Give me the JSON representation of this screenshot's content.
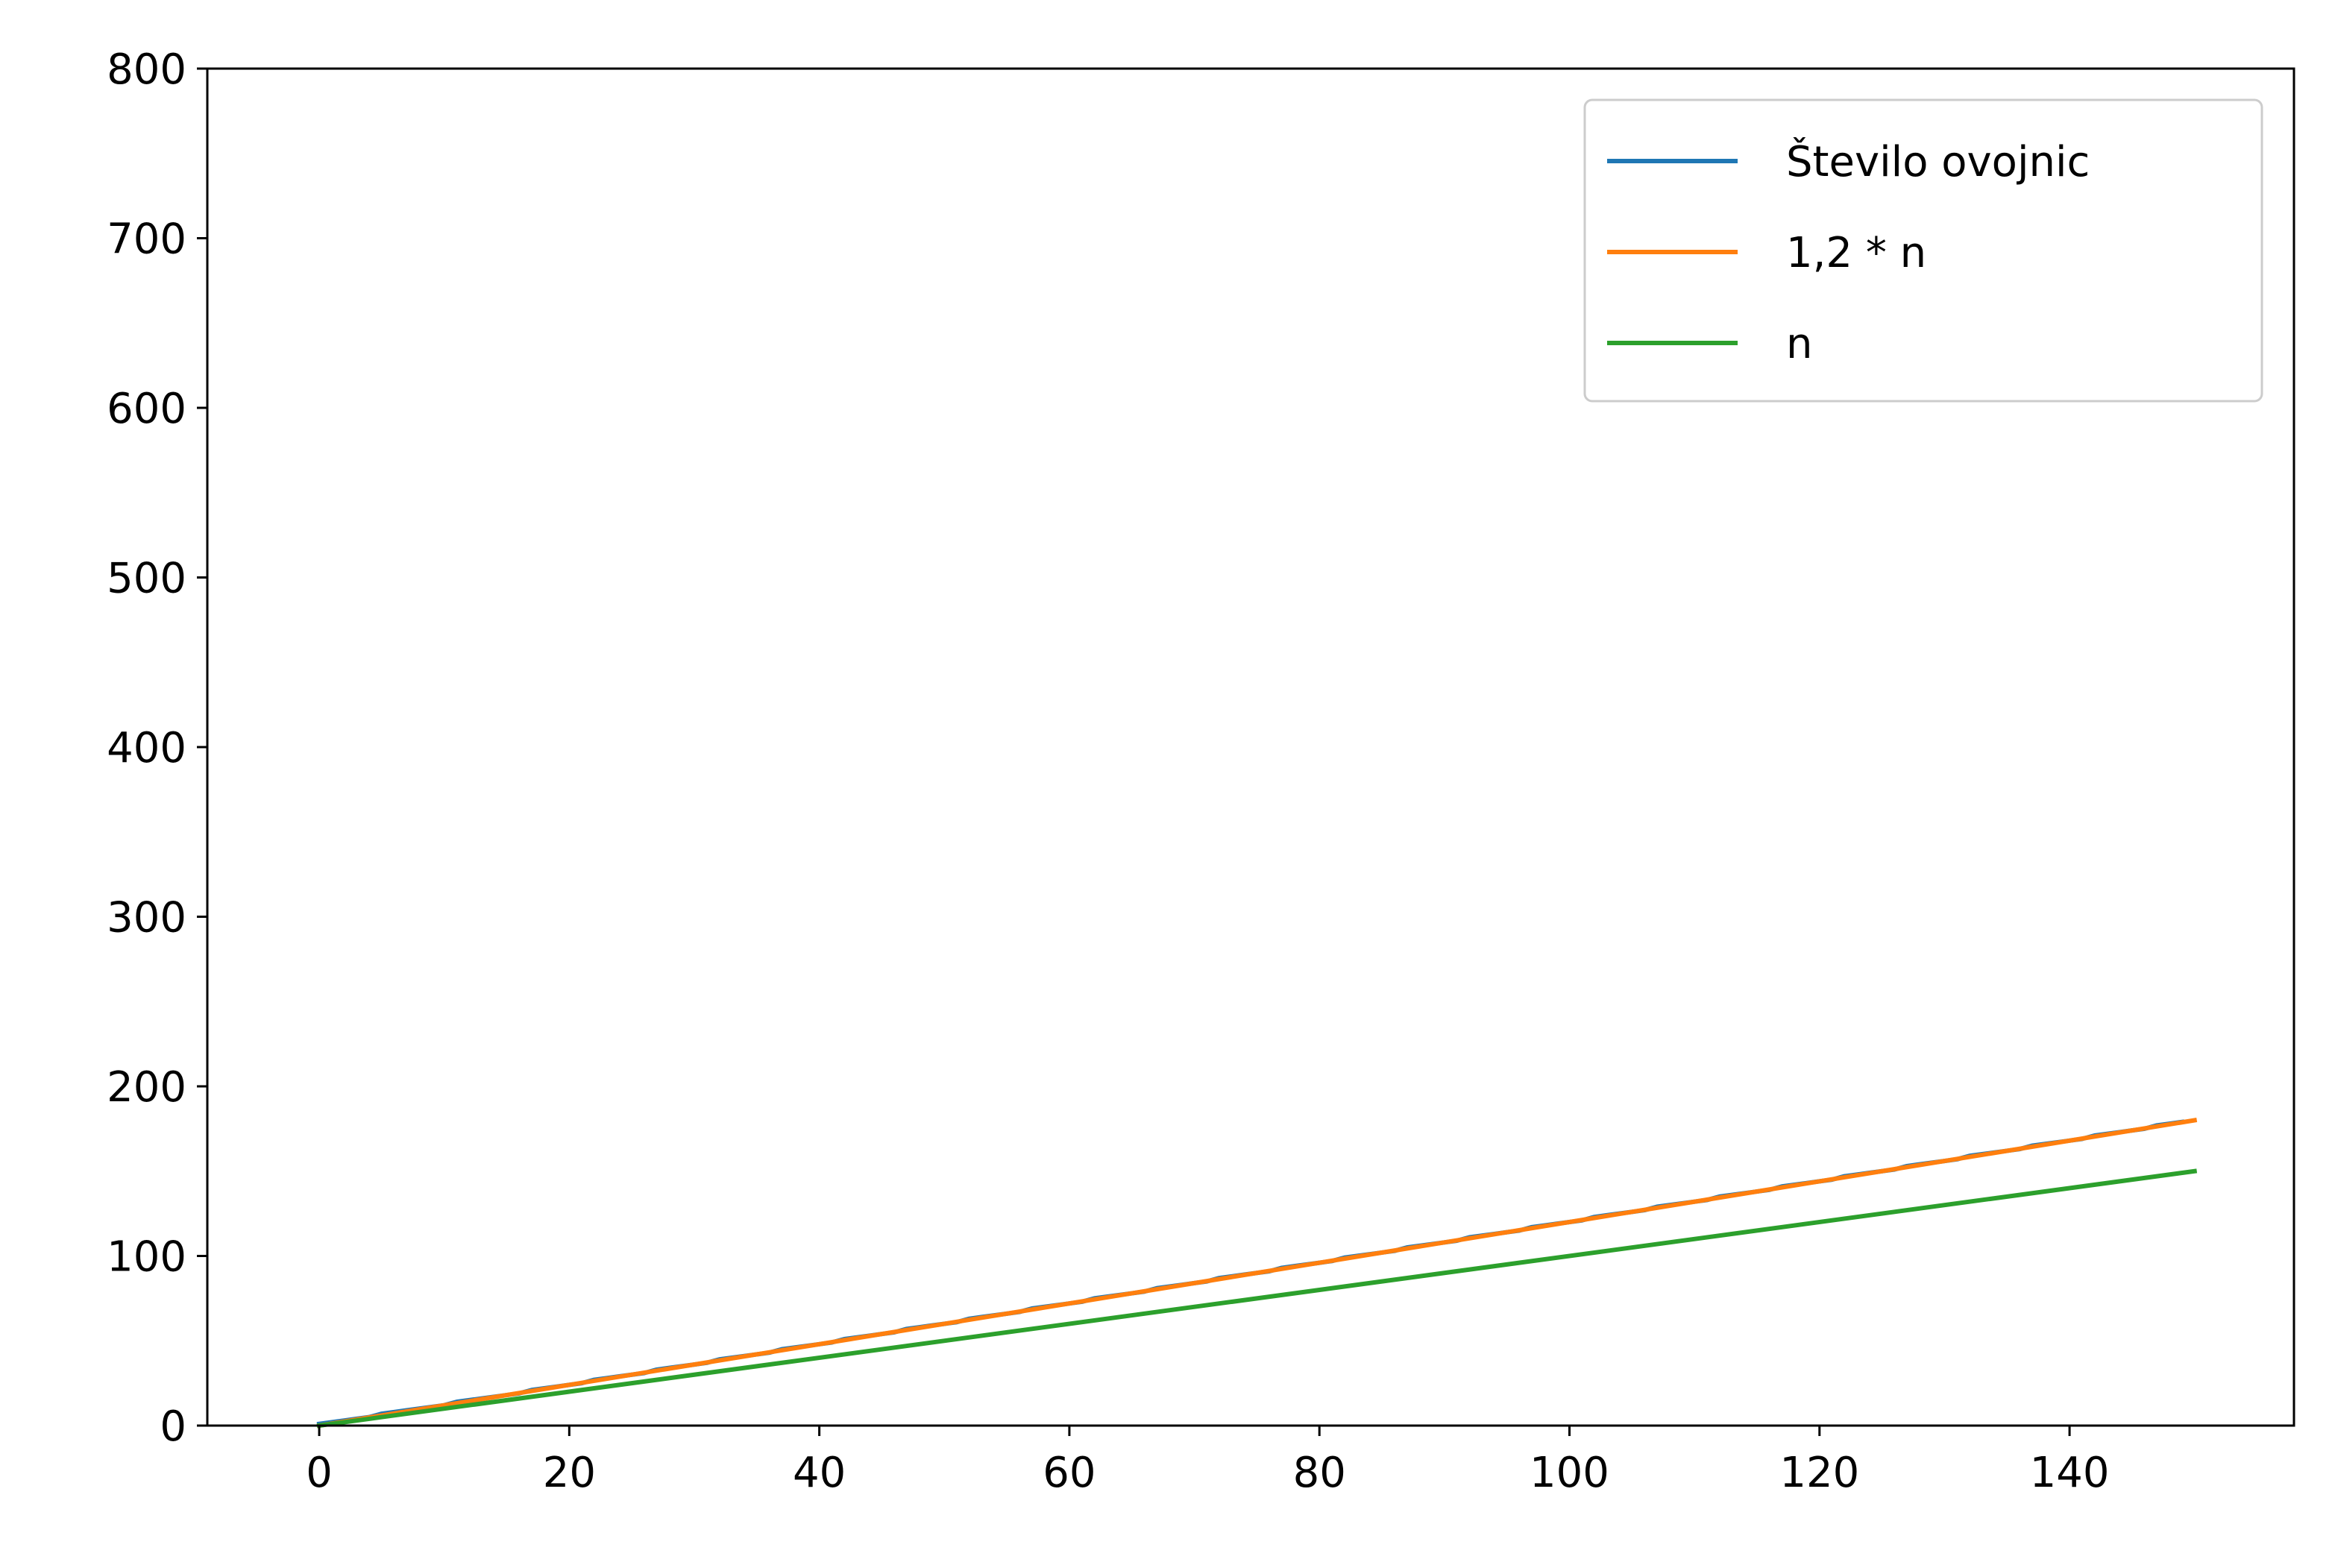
{
  "chart_data": {
    "type": "line",
    "title": "",
    "xlabel": "",
    "ylabel": "",
    "xlim": [
      -8.95,
      157.95
    ],
    "ylim": [
      0,
      800
    ],
    "grid": false,
    "legend_position": "top-right",
    "x_ticks": [
      0,
      20,
      40,
      60,
      80,
      100,
      120,
      140
    ],
    "y_ticks": [
      0,
      100,
      200,
      300,
      400,
      500,
      600,
      700,
      800
    ],
    "x_tick_labels": [
      "0",
      "20",
      "40",
      "60",
      "80",
      "100",
      "120",
      "140"
    ],
    "y_tick_labels": [
      "0",
      "100",
      "200",
      "300",
      "400",
      "500",
      "600",
      "700",
      "800"
    ],
    "series": [
      {
        "name": "Število ovojnic",
        "color": "#1f77b4",
        "x": [
          0,
          1,
          2,
          3,
          4,
          5,
          6,
          7,
          8,
          9,
          10,
          11,
          12,
          13,
          14,
          15,
          16,
          17,
          18,
          19,
          20,
          21,
          22,
          23,
          24,
          25,
          26,
          27,
          28,
          29,
          30,
          31,
          32,
          33,
          34,
          35,
          36,
          37,
          38,
          39,
          40,
          41,
          42,
          43,
          44,
          45,
          46,
          47,
          48,
          49,
          50,
          51,
          52,
          53,
          54,
          55,
          56,
          57,
          58,
          59,
          60,
          61,
          62,
          63,
          64,
          65,
          66,
          67,
          68,
          69,
          70,
          71,
          72,
          73,
          74,
          75,
          76,
          77,
          78,
          79,
          80,
          81,
          82,
          83,
          84,
          85,
          86,
          87,
          88,
          89,
          90,
          91,
          92,
          93,
          94,
          95,
          96,
          97,
          98,
          99,
          100,
          101,
          102,
          103,
          104,
          105,
          106,
          107,
          108,
          109,
          110,
          111,
          112,
          113,
          114,
          115,
          116,
          117,
          118,
          119,
          120,
          121,
          122,
          123,
          124,
          125,
          126,
          127,
          128,
          129,
          130,
          131,
          132,
          133,
          134,
          135,
          136,
          137,
          138,
          139,
          140,
          141,
          142,
          143,
          144,
          145,
          146,
          147,
          148,
          149
        ],
        "y": [
          1,
          2,
          3,
          4,
          5,
          7,
          8,
          9,
          10,
          11,
          12,
          14,
          15,
          16,
          17,
          18,
          19,
          21,
          22,
          23,
          24,
          25,
          27,
          28,
          29,
          30,
          31,
          33,
          34,
          35,
          36,
          37,
          39,
          40,
          41,
          42,
          43,
          45,
          46,
          47,
          48,
          49,
          51,
          52,
          53,
          54,
          55,
          57,
          58,
          59,
          60,
          61,
          63,
          64,
          65,
          66,
          67,
          69,
          70,
          71,
          72,
          73,
          75,
          76,
          77,
          78,
          79,
          81,
          82,
          83,
          84,
          85,
          87,
          88,
          89,
          90,
          91,
          93,
          94,
          95,
          96,
          97,
          99,
          100,
          101,
          102,
          103,
          105,
          106,
          107,
          108,
          109,
          111,
          112,
          113,
          114,
          115,
          117,
          118,
          119,
          120,
          121,
          123,
          124,
          125,
          126,
          127,
          129,
          130,
          131,
          132,
          133,
          135,
          136,
          137,
          138,
          139,
          141,
          142,
          143,
          144,
          145,
          147,
          148,
          149,
          150,
          151,
          153,
          154,
          155,
          156,
          157,
          159,
          160,
          161,
          162,
          163,
          165,
          166,
          167,
          168,
          169,
          171,
          172,
          173,
          174,
          175,
          177,
          178,
          179
        ]
      },
      {
        "name": "1,2 * n",
        "color": "#ff7f0e",
        "x": [
          0,
          150
        ],
        "y": [
          0,
          180
        ]
      },
      {
        "name": "n",
        "color": "#2ca02c",
        "x": [
          0,
          150
        ],
        "y": [
          0,
          150
        ]
      }
    ]
  }
}
